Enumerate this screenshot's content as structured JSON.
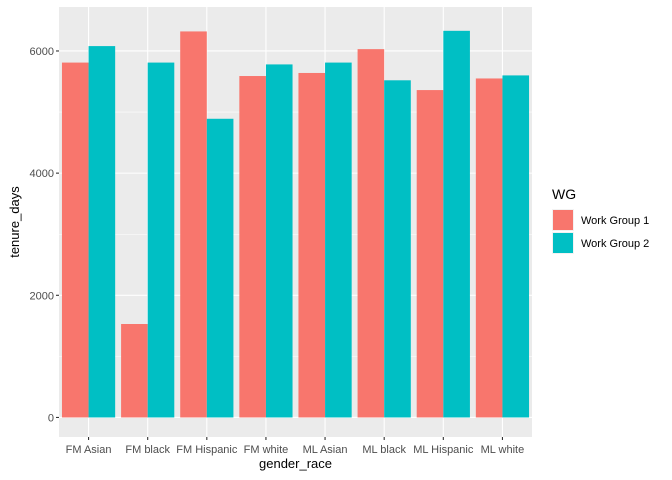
{
  "chart_data": {
    "type": "bar",
    "categories": [
      "FM Asian",
      "FM black",
      "FM Hispanic",
      "FM white",
      "ML Asian",
      "ML black",
      "ML Hispanic",
      "ML white"
    ],
    "series": [
      {
        "name": "Work Group 1",
        "color": "#F8766D",
        "values": [
          5810,
          1530,
          6320,
          5590,
          5640,
          6030,
          5360,
          5550
        ]
      },
      {
        "name": "Work Group 2",
        "color": "#00BFC4",
        "values": [
          6080,
          5810,
          4890,
          5780,
          5810,
          5520,
          6330,
          5600
        ]
      }
    ],
    "xlabel": "gender_race",
    "ylabel": "tenure_days",
    "ylim": [
      -320,
      6720
    ],
    "yticks": [
      0,
      2000,
      4000,
      6000
    ],
    "legend": {
      "title": "WG",
      "position": "right"
    },
    "grid": true,
    "panel_background": "#EBEBEB"
  }
}
